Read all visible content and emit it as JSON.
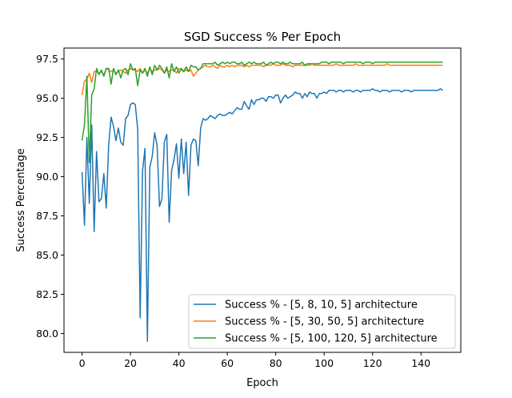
{
  "chart_data": {
    "type": "line",
    "title": "SGD Success % Per Epoch",
    "xlabel": "Epoch",
    "ylabel": "Success Percentage",
    "xlim": [
      -7.45,
      156.45
    ],
    "ylim": [
      78.8,
      98.2
    ],
    "xticks": [
      0,
      20,
      40,
      60,
      80,
      100,
      120,
      140
    ],
    "xtick_labels": [
      "0",
      "20",
      "40",
      "60",
      "80",
      "100",
      "120",
      "140"
    ],
    "yticks": [
      80.0,
      82.5,
      85.0,
      87.5,
      90.0,
      92.5,
      95.0,
      97.5
    ],
    "ytick_labels": [
      "80.0",
      "82.5",
      "85.0",
      "87.5",
      "90.0",
      "92.5",
      "95.0",
      "97.5"
    ],
    "grid": false,
    "legend_position": "lower-right",
    "series": [
      {
        "name": "Success % - [5, 8, 10, 5] architecture",
        "color": "#1f77b4",
        "values": [
          90.3,
          86.9,
          92.5,
          88.3,
          93.3,
          86.5,
          91.6,
          88.4,
          88.6,
          90.2,
          88.0,
          92.0,
          93.8,
          93.2,
          92.3,
          93.1,
          92.2,
          92.0,
          93.7,
          93.9,
          94.6,
          94.7,
          94.6,
          93.0,
          81.0,
          90.4,
          91.8,
          79.5,
          90.6,
          91.3,
          92.8,
          92.0,
          88.1,
          88.6,
          92.2,
          92.7,
          87.1,
          90.4,
          91.1,
          92.1,
          89.9,
          92.4,
          90.2,
          92.2,
          88.8,
          92.0,
          92.4,
          92.3,
          90.7,
          93.1,
          93.7,
          93.6,
          93.7,
          93.9,
          93.8,
          93.7,
          93.9,
          94.0,
          93.9,
          93.9,
          94.0,
          94.1,
          94.0,
          94.2,
          94.4,
          94.3,
          94.3,
          94.8,
          94.5,
          94.3,
          94.9,
          94.6,
          94.9,
          94.9,
          95.0,
          95.0,
          94.8,
          95.1,
          95.1,
          95.0,
          95.2,
          95.2,
          94.7,
          95.0,
          95.2,
          95.0,
          95.1,
          95.2,
          95.4,
          95.3,
          95.3,
          95.0,
          95.3,
          95.1,
          95.4,
          95.3,
          95.3,
          95.0,
          95.3,
          95.3,
          95.4,
          95.3,
          95.5,
          95.5,
          95.5,
          95.4,
          95.5,
          95.5,
          95.4,
          95.5,
          95.5,
          95.5,
          95.4,
          95.5,
          95.5,
          95.4,
          95.5,
          95.5,
          95.5,
          95.5,
          95.6,
          95.5,
          95.5,
          95.4,
          95.5,
          95.5,
          95.5,
          95.4,
          95.5,
          95.5,
          95.5,
          95.5,
          95.4,
          95.5,
          95.5,
          95.5,
          95.4,
          95.5,
          95.5,
          95.5,
          95.5,
          95.5,
          95.5,
          95.5,
          95.5,
          95.5,
          95.5,
          95.5,
          95.6,
          95.5
        ]
      },
      {
        "name": "Success % - [5, 30, 50, 5] architecture",
        "color": "#ff7f0e",
        "values": [
          95.2,
          96.1,
          96.2,
          96.6,
          96.0,
          96.7,
          96.7,
          96.6,
          96.7,
          96.5,
          96.9,
          96.8,
          96.7,
          96.8,
          96.6,
          96.7,
          96.8,
          96.7,
          96.6,
          96.8,
          96.9,
          96.8,
          96.8,
          96.7,
          96.9,
          96.6,
          96.8,
          96.6,
          96.9,
          96.7,
          96.8,
          96.8,
          96.9,
          96.8,
          96.6,
          96.8,
          96.7,
          96.8,
          96.8,
          96.6,
          96.9,
          96.8,
          96.7,
          96.8,
          96.7,
          96.8,
          96.4,
          96.6,
          96.8,
          96.9,
          97.0,
          97.1,
          97.0,
          97.0,
          97.1,
          97.0,
          96.9,
          97.1,
          97.0,
          97.0,
          97.1,
          97.0,
          97.1,
          97.0,
          97.1,
          97.1,
          97.1,
          97.0,
          97.1,
          97.0,
          97.1,
          97.1,
          97.1,
          97.1,
          97.1,
          97.0,
          97.1,
          97.1,
          97.1,
          97.2,
          97.1,
          97.1,
          97.1,
          97.2,
          97.1,
          97.1,
          97.1,
          97.0,
          97.1,
          97.1,
          97.1,
          97.1,
          97.1,
          97.1,
          97.1,
          97.2,
          97.1,
          97.1,
          97.1,
          97.1,
          97.1,
          97.1,
          97.1,
          97.1,
          97.1,
          97.2,
          97.1,
          97.1,
          97.1,
          97.1,
          97.1,
          97.1,
          97.1,
          97.2,
          97.1,
          97.1,
          97.1,
          97.1,
          97.1,
          97.1,
          97.1,
          97.1,
          97.1,
          97.1,
          97.1,
          97.1,
          97.2,
          97.1,
          97.1,
          97.1,
          97.1,
          97.1,
          97.1,
          97.1,
          97.1,
          97.1,
          97.1,
          97.1,
          97.1,
          97.1,
          97.1,
          97.1,
          97.1,
          97.1,
          97.1,
          97.1,
          97.1,
          97.1,
          97.1,
          97.1
        ]
      },
      {
        "name": "Success % - [5, 100, 120, 5] architecture",
        "color": "#2ca02c",
        "values": [
          92.3,
          93.3,
          96.4,
          90.9,
          95.2,
          95.6,
          96.9,
          96.5,
          96.8,
          96.4,
          96.9,
          96.9,
          95.9,
          96.9,
          96.5,
          96.8,
          96.3,
          96.8,
          96.9,
          96.5,
          97.2,
          96.8,
          96.9,
          95.8,
          96.8,
          96.6,
          96.9,
          96.4,
          97.0,
          96.5,
          97.1,
          96.8,
          97.1,
          96.9,
          96.6,
          97.0,
          96.3,
          97.2,
          96.7,
          97.0,
          96.6,
          96.9,
          96.7,
          97.0,
          96.7,
          97.1,
          97.0,
          97.0,
          96.8,
          96.9,
          97.2,
          97.2,
          97.2,
          97.2,
          97.2,
          97.3,
          97.1,
          97.2,
          97.3,
          97.2,
          97.3,
          97.2,
          97.3,
          97.3,
          97.2,
          97.2,
          97.3,
          97.1,
          97.2,
          97.3,
          97.2,
          97.3,
          97.2,
          97.2,
          97.2,
          97.3,
          97.1,
          97.2,
          97.3,
          97.2,
          97.3,
          97.3,
          97.2,
          97.3,
          97.2,
          97.2,
          97.3,
          97.2,
          97.2,
          97.2,
          97.2,
          97.3,
          97.1,
          97.2,
          97.2,
          97.2,
          97.2,
          97.2,
          97.2,
          97.3,
          97.3,
          97.3,
          97.2,
          97.3,
          97.3,
          97.3,
          97.3,
          97.3,
          97.2,
          97.3,
          97.3,
          97.3,
          97.3,
          97.3,
          97.3,
          97.3,
          97.2,
          97.3,
          97.3,
          97.3,
          97.2,
          97.3,
          97.3,
          97.3,
          97.3,
          97.3,
          97.3,
          97.3,
          97.3,
          97.3,
          97.3,
          97.3,
          97.3,
          97.3,
          97.3,
          97.3,
          97.3,
          97.3,
          97.3,
          97.3,
          97.3,
          97.3,
          97.3,
          97.3,
          97.3,
          97.3,
          97.3,
          97.3,
          97.3,
          97.3
        ]
      }
    ]
  }
}
